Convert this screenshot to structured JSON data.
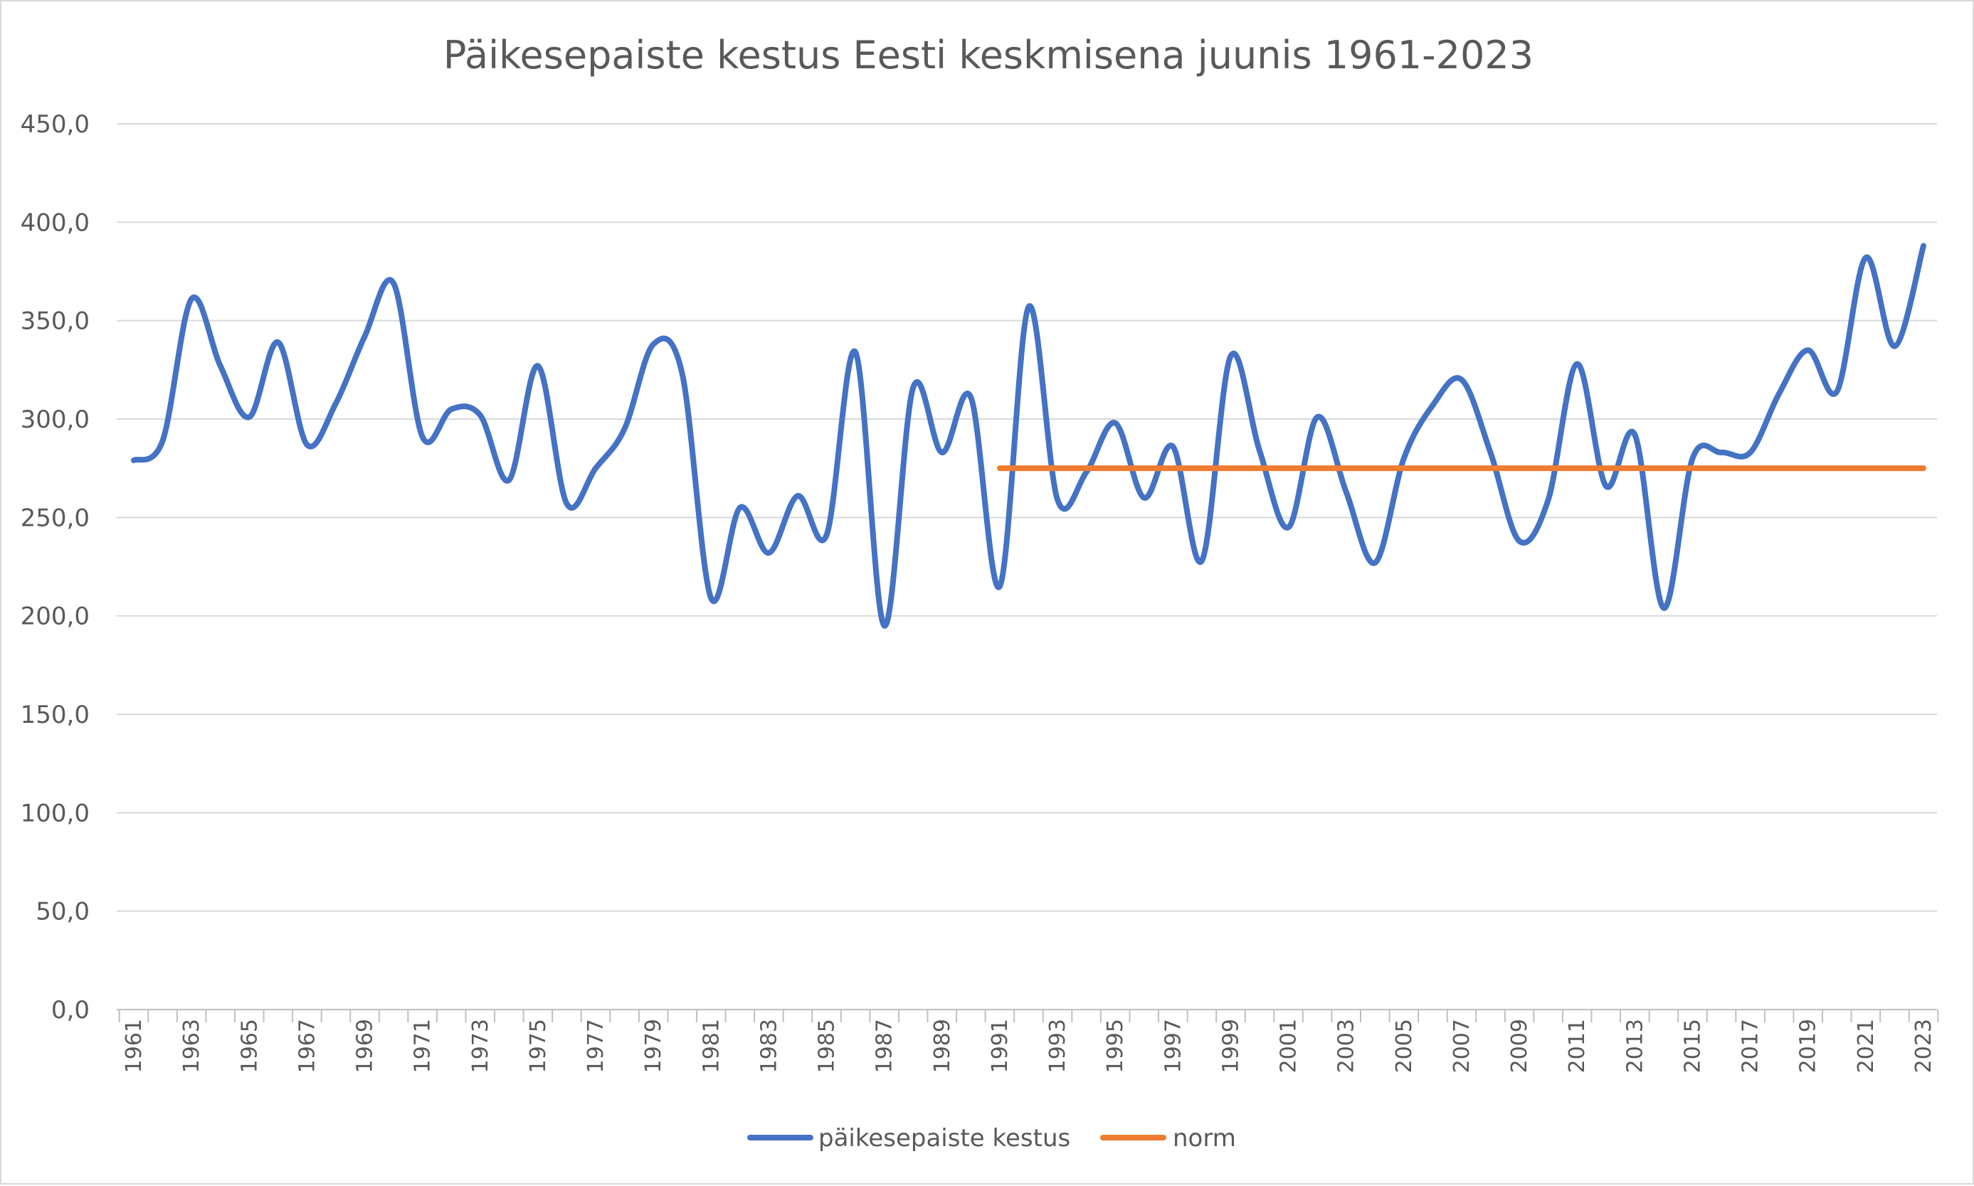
{
  "chart_data": {
    "type": "line",
    "title": "Päikesepaiste kestus Eesti keskmisena juunis 1961-2023",
    "xlabel": "",
    "ylabel": "",
    "ylim": [
      0,
      450
    ],
    "yticks": [
      "0,0",
      "50,0",
      "100,0",
      "150,0",
      "200,0",
      "250,0",
      "300,0",
      "350,0",
      "400,0",
      "450,0"
    ],
    "ytick_values": [
      0,
      50,
      100,
      150,
      200,
      250,
      300,
      350,
      400,
      450
    ],
    "grid": true,
    "legend_position": "bottom",
    "x": [
      1961,
      1962,
      1963,
      1964,
      1965,
      1966,
      1967,
      1968,
      1969,
      1970,
      1971,
      1972,
      1973,
      1974,
      1975,
      1976,
      1977,
      1978,
      1979,
      1980,
      1981,
      1982,
      1983,
      1984,
      1985,
      1986,
      1987,
      1988,
      1989,
      1990,
      1991,
      1992,
      1993,
      1994,
      1995,
      1996,
      1997,
      1998,
      1999,
      2000,
      2001,
      2002,
      2003,
      2004,
      2005,
      2006,
      2007,
      2008,
      2009,
      2010,
      2011,
      2012,
      2013,
      2014,
      2015,
      2016,
      2017,
      2018,
      2019,
      2020,
      2021,
      2022,
      2023
    ],
    "x_tick_labels": [
      "1961",
      "1963",
      "1965",
      "1967",
      "1969",
      "1971",
      "1973",
      "1975",
      "1977",
      "1979",
      "1981",
      "1983",
      "1985",
      "1987",
      "1989",
      "1991",
      "1993",
      "1995",
      "1997",
      "1999",
      "2001",
      "2003",
      "2005",
      "2007",
      "2009",
      "2011",
      "2013",
      "2015",
      "2017",
      "2019",
      "2021",
      "2023"
    ],
    "series": [
      {
        "name": "päikesepaiste kestus",
        "color": "#4472c4",
        "values": [
          279,
          289,
          361,
          327,
          301,
          339,
          287,
          308,
          342,
          369,
          291,
          305,
          302,
          269,
          327,
          257,
          275,
          295,
          338,
          323,
          209,
          255,
          232,
          261,
          241,
          334,
          195,
          316,
          283,
          311,
          215,
          357,
          259,
          273,
          298,
          260,
          286,
          228,
          332,
          284,
          245,
          301,
          263,
          227,
          280,
          307,
          320,
          283,
          238,
          259,
          328,
          266,
          292,
          204,
          280,
          283,
          283,
          313,
          335,
          314,
          382,
          337,
          388
        ]
      },
      {
        "name": "norm",
        "color": "#ed7d31",
        "x_start": 1991,
        "x_end": 2023,
        "value": 275
      }
    ]
  }
}
